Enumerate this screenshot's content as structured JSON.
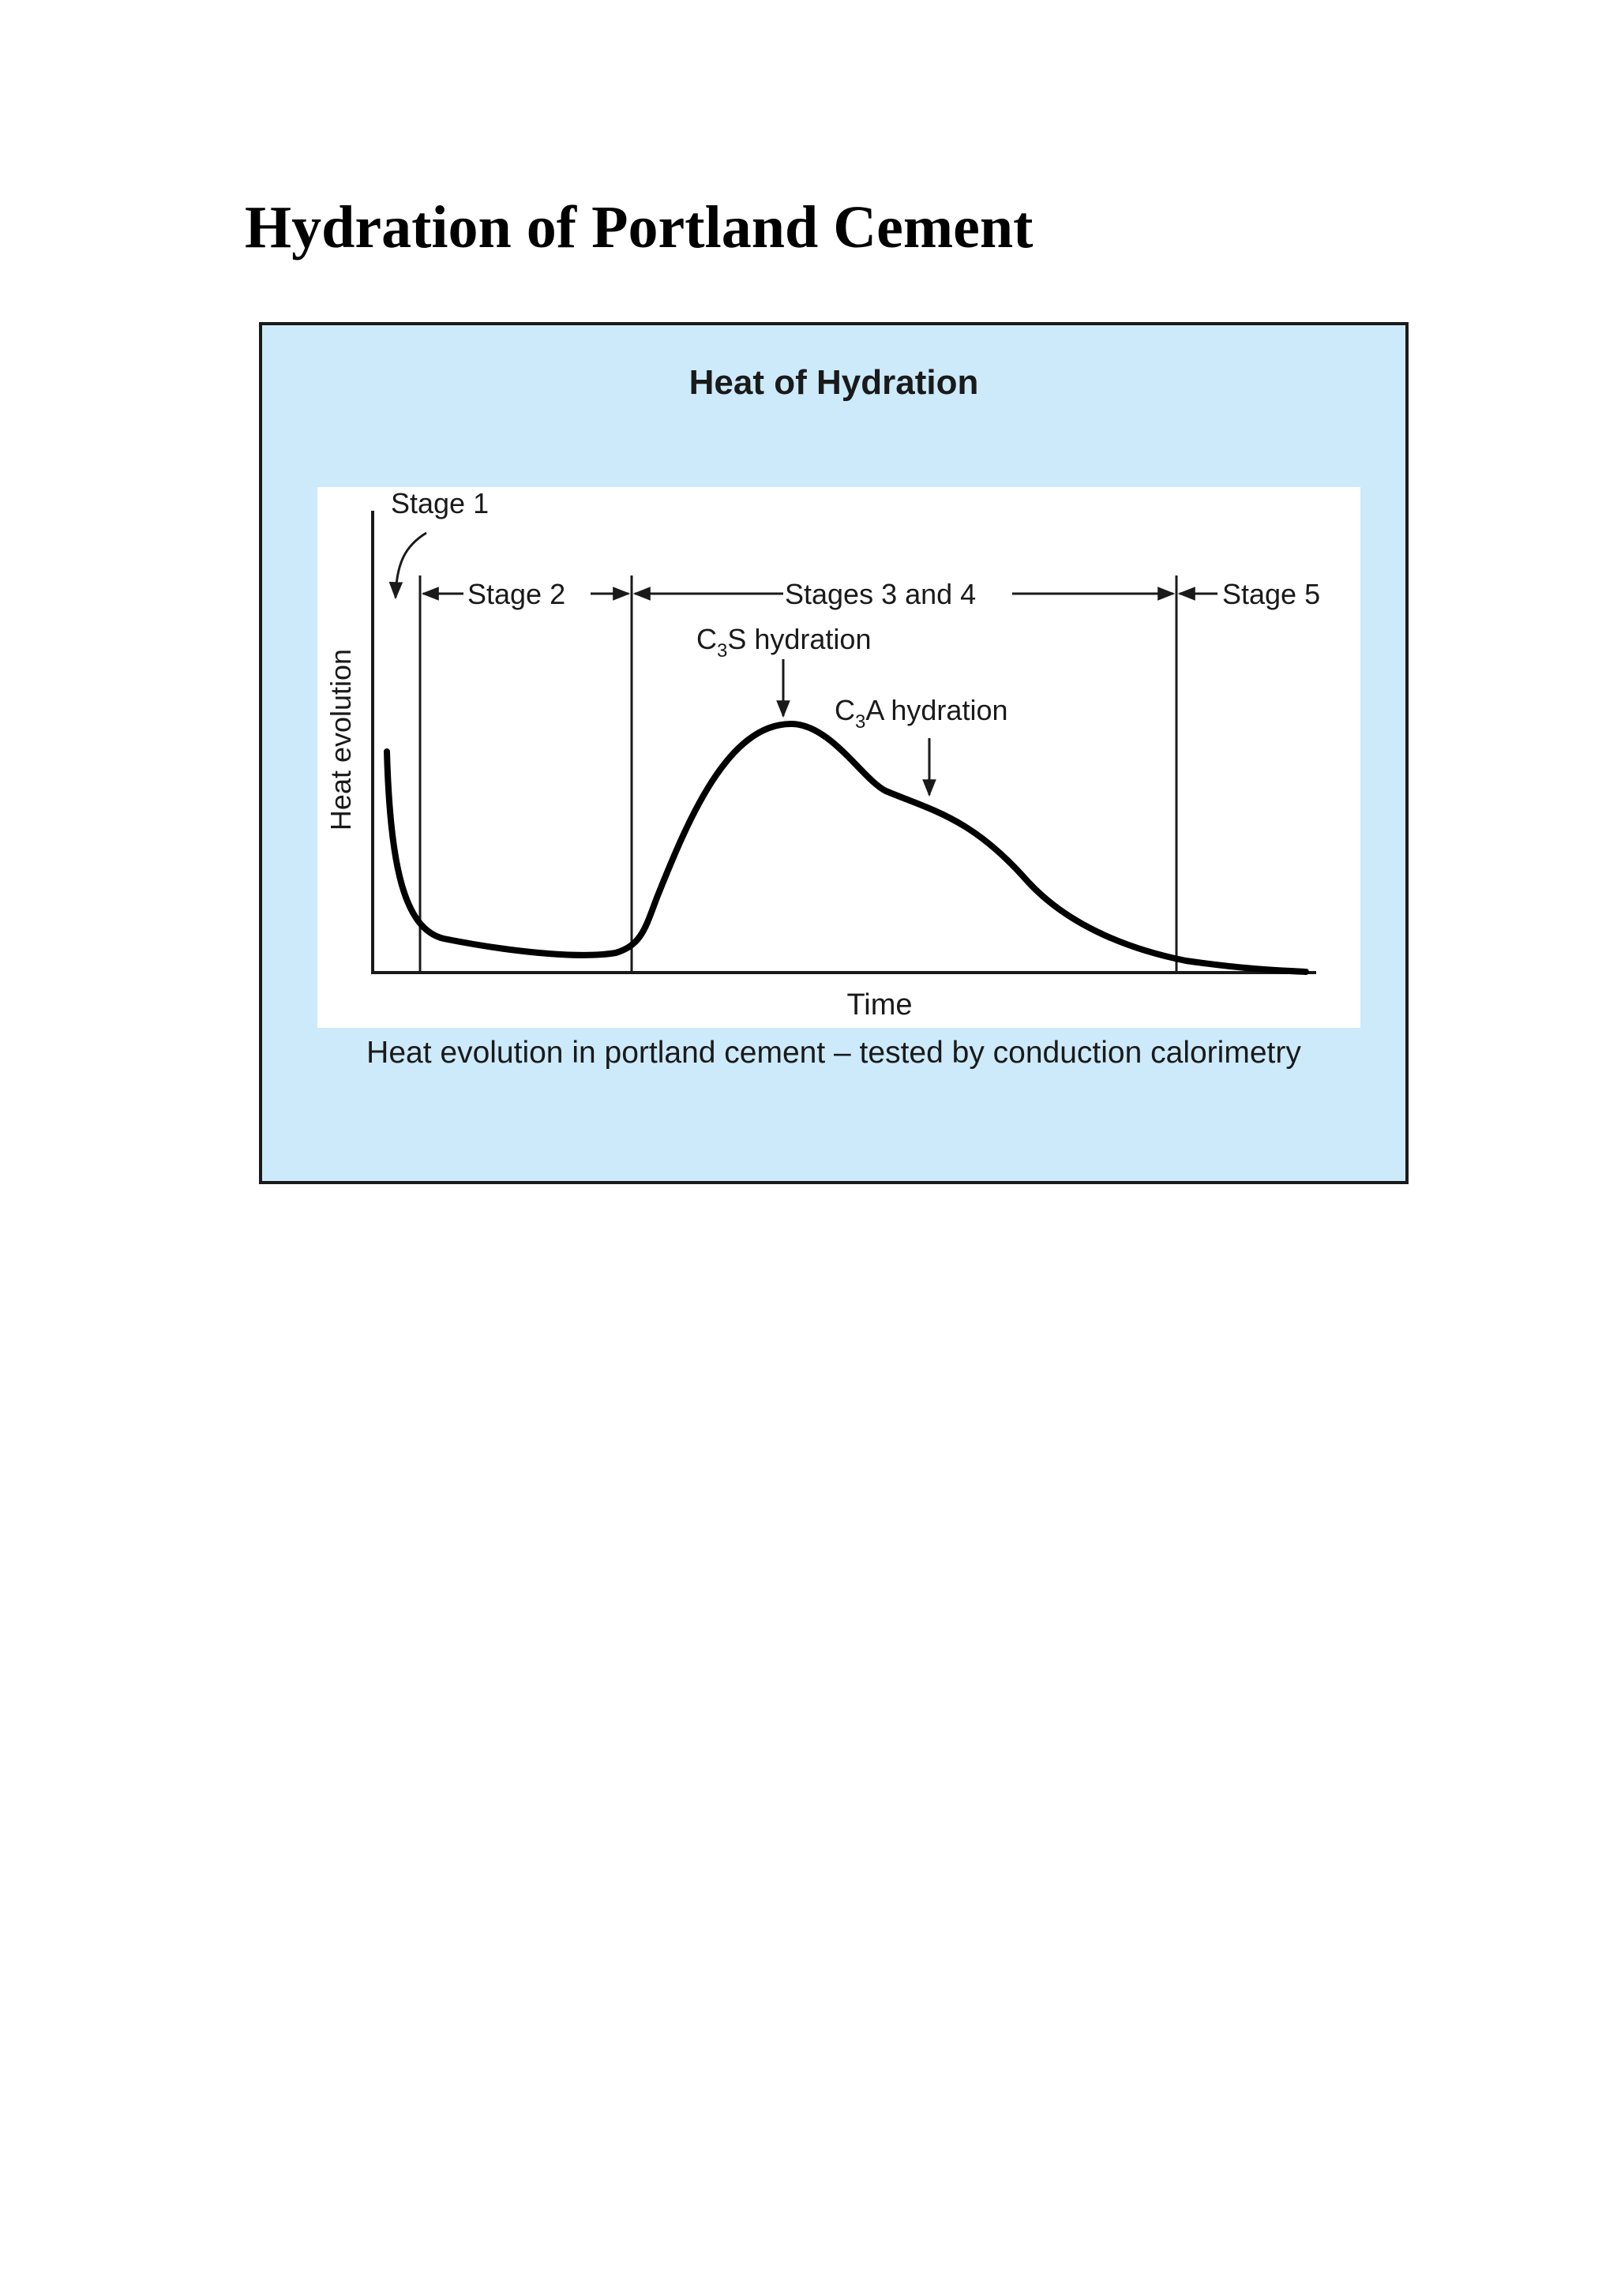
{
  "document": {
    "title": "Hydration of Portland Cement"
  },
  "figure": {
    "heading": "Heat of Hydration",
    "caption": "Heat evolution in portland cement – tested by conduction calorimetry"
  },
  "chart_data": {
    "type": "line",
    "title": "",
    "xlabel": "Time",
    "ylabel": "Heat evolution",
    "stage_labels": {
      "stage1": "Stage 1",
      "stage2": "Stage 2",
      "stages34": "Stages 3 and 4",
      "stage5": "Stage 5"
    },
    "annotations": {
      "c3s": {
        "c": "C",
        "sub": "3",
        "rest": "S hydration"
      },
      "c3a": {
        "c": "C",
        "sub": "3",
        "rest": "A hydration"
      }
    },
    "colors": {
      "curve": "#000000",
      "panel": "#cceafa",
      "plot": "#ffffff"
    }
  }
}
